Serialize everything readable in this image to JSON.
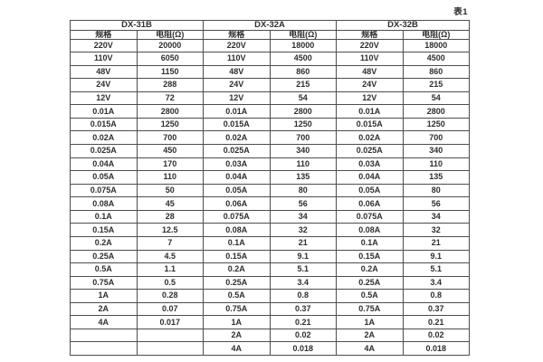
{
  "page": {
    "caption": "表1"
  },
  "table": {
    "sections": [
      {
        "title": "DX-31B"
      },
      {
        "title": "DX-32A"
      },
      {
        "title": "DX-32B"
      }
    ],
    "col_headers": {
      "spec": "规格",
      "resistance": "电阻(Ω)"
    },
    "rows": [
      [
        "220V",
        "20000",
        "220V",
        "18000",
        "220V",
        "18000"
      ],
      [
        "110V",
        "6050",
        "110V",
        "4500",
        "110V",
        "4500"
      ],
      [
        "48V",
        "1150",
        "48V",
        "860",
        "48V",
        "860"
      ],
      [
        "24V",
        "288",
        "24V",
        "215",
        "24V",
        "215"
      ],
      [
        "12V",
        "72",
        "12V",
        "54",
        "12V",
        "54"
      ],
      [
        "0.01A",
        "2800",
        "0.01A",
        "2800",
        "0.01A",
        "2800"
      ],
      [
        "0.015A",
        "1250",
        "0.015A",
        "1250",
        "0.015A",
        "1250"
      ],
      [
        "0.02A",
        "700",
        "0.02A",
        "700",
        "0.02A",
        "700"
      ],
      [
        "0.025A",
        "450",
        "0.025A",
        "340",
        "0.025A",
        "340"
      ],
      [
        "0.04A",
        "170",
        "0.03A",
        "110",
        "0.03A",
        "110"
      ],
      [
        "0.05A",
        "110",
        "0.04A",
        "135",
        "0.04A",
        "135"
      ],
      [
        "0.075A",
        "50",
        "0.05A",
        "80",
        "0.05A",
        "80"
      ],
      [
        "0.08A",
        "45",
        "0.06A",
        "56",
        "0.06A",
        "56"
      ],
      [
        "0.1A",
        "28",
        "0.075A",
        "34",
        "0.075A",
        "34"
      ],
      [
        "0.15A",
        "12.5",
        "0.08A",
        "32",
        "0.08A",
        "32"
      ],
      [
        "0.2A",
        "7",
        "0.1A",
        "21",
        "0.1A",
        "21"
      ],
      [
        "0.25A",
        "4.5",
        "0.15A",
        "9.1",
        "0.15A",
        "9.1"
      ],
      [
        "0.5A",
        "1.1",
        "0.2A",
        "5.1",
        "0.2A",
        "5.1"
      ],
      [
        "0.75A",
        "0.5",
        "0.25A",
        "3.4",
        "0.25A",
        "3.4"
      ],
      [
        "1A",
        "0.28",
        "0.5A",
        "0.8",
        "0.5A",
        "0.8"
      ],
      [
        "2A",
        "0.07",
        "0.75A",
        "0.37",
        "0.75A",
        "0.37"
      ],
      [
        "4A",
        "0.017",
        "1A",
        "0.21",
        "1A",
        "0.21"
      ],
      [
        "",
        "",
        "2A",
        "0.02",
        "2A",
        "0.02"
      ],
      [
        "",
        "",
        "4A",
        "0.018",
        "4A",
        "0.018"
      ]
    ],
    "colors": {
      "border": "#4d4d4d",
      "text": "#2e2e2e",
      "background": "#ffffff"
    }
  }
}
